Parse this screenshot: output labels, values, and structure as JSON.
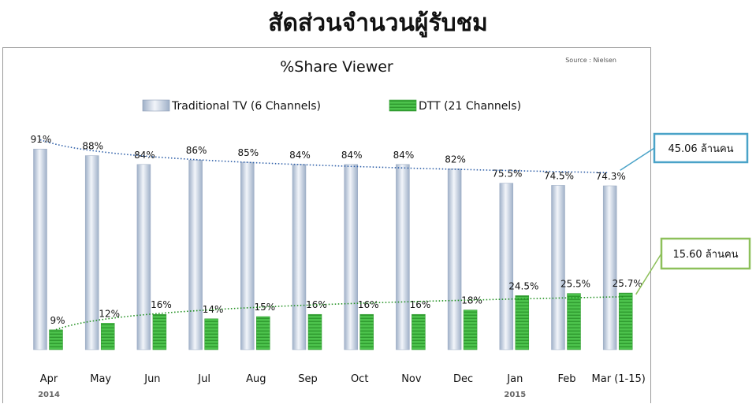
{
  "page_title": "สัดส่วนจำนวนผู้รับชม",
  "chart_data": {
    "type": "bar",
    "title": "%Share Viewer",
    "source": "Source : Nielsen",
    "categories": [
      "Apr",
      "May",
      "Jun",
      "Jul",
      "Aug",
      "Sep",
      "Oct",
      "Nov",
      "Dec",
      "Jan",
      "Feb",
      "Mar (1-15)"
    ],
    "year_labels": [
      {
        "text": "2014",
        "category_index": 0
      },
      {
        "text": "2015",
        "category_index": 9
      }
    ],
    "series": [
      {
        "name": "Traditional TV (6 Channels)",
        "values": [
          91,
          88,
          84,
          86,
          85,
          84,
          84,
          84,
          82,
          75.5,
          74.5,
          74.3
        ],
        "labels": [
          "91%",
          "88%",
          "84%",
          "86%",
          "85%",
          "84%",
          "84%",
          "84%",
          "82%",
          "75.5%",
          "74.5%",
          "74.3%"
        ],
        "color": "#c9d4e5"
      },
      {
        "name": "DTT (21 Channels)",
        "values": [
          9,
          12,
          16,
          14,
          15,
          16,
          16,
          16,
          18,
          24.5,
          25.5,
          25.7
        ],
        "labels": [
          "9%",
          "12%",
          "16%",
          "14%",
          "15%",
          "16%",
          "16%",
          "16%",
          "18%",
          "24.5%",
          "25.5%",
          "25.7%"
        ],
        "color": "#3fb33f"
      }
    ],
    "ylim": [
      0,
      100
    ],
    "legend": "top",
    "grid": false,
    "callouts": [
      {
        "text": "45.06 ล้านคน",
        "series_index": 0,
        "border_color": "#4aa3c8"
      },
      {
        "text": "15.60 ล้านคน",
        "series_index": 1,
        "border_color": "#8dc05a"
      }
    ]
  }
}
